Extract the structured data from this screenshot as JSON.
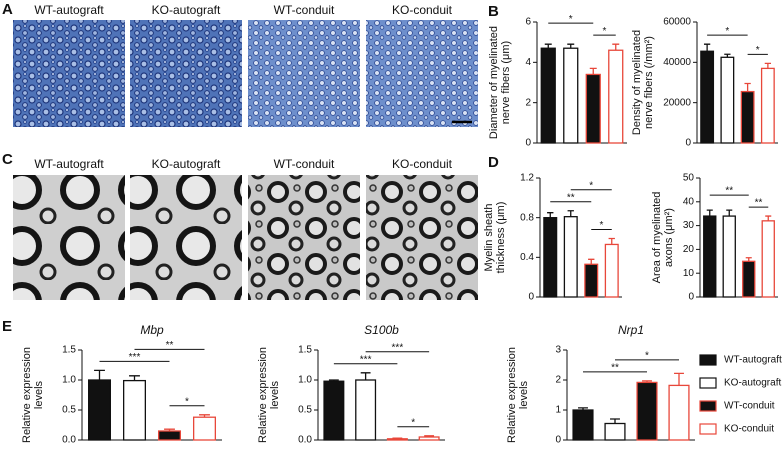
{
  "panels": [
    "A",
    "B",
    "C",
    "D",
    "E"
  ],
  "images_a": [
    "WT-autograft",
    "KO-autograft",
    "WT-conduit",
    "KO-conduit"
  ],
  "images_c": [
    "WT-autograft",
    "KO-autograft",
    "WT-conduit",
    "KO-conduit"
  ],
  "groups": [
    {
      "name": "WT-autograft",
      "fill": "#111111",
      "stroke": "#111111"
    },
    {
      "name": "KO-autograft",
      "fill": "#ffffff",
      "stroke": "#111111"
    },
    {
      "name": "WT-conduit",
      "fill": "#111111",
      "stroke": "#e8473a"
    },
    {
      "name": "KO-conduit",
      "fill": "#ffffff",
      "stroke": "#e8473a"
    }
  ],
  "chart_data": [
    {
      "type": "bar",
      "ylabel": [
        "Diameter of myelinated",
        "nerve fibers (μm)"
      ],
      "values": [
        4.7,
        4.7,
        3.4,
        4.6
      ],
      "errors": [
        0.2,
        0.2,
        0.3,
        0.3
      ],
      "ylim": [
        0,
        6
      ],
      "yticks": [
        0,
        2,
        4,
        6
      ],
      "annotations": [
        {
          "text": "*",
          "from": 2,
          "to": 3
        },
        {
          "text": "*",
          "from": 0,
          "to": 2
        }
      ]
    },
    {
      "type": "bar",
      "ylabel": [
        "Density of myelinated",
        "nerve fibers (/mm²)"
      ],
      "values": [
        45500,
        42500,
        25500,
        37000
      ],
      "errors": [
        3500,
        1500,
        4000,
        2500
      ],
      "ylim": [
        0,
        60000
      ],
      "yticks": [
        0,
        20000,
        40000,
        60000
      ],
      "annotations": [
        {
          "text": "*",
          "from": 2,
          "to": 3
        },
        {
          "text": "*",
          "from": 0,
          "to": 2
        }
      ]
    },
    {
      "type": "bar",
      "ylabel": [
        "Myelin sheath",
        "thickness (μm)"
      ],
      "values": [
        0.8,
        0.81,
        0.33,
        0.53
      ],
      "errors": [
        0.05,
        0.06,
        0.05,
        0.06
      ],
      "ylim": [
        0,
        1.2
      ],
      "yticks": [
        0,
        0.4,
        0.8,
        1.2
      ],
      "annotations": [
        {
          "text": "*",
          "from": 2,
          "to": 3
        },
        {
          "text": "**",
          "from": 0,
          "to": 2
        },
        {
          "text": "*",
          "from": 1,
          "to": 3
        }
      ]
    },
    {
      "type": "bar",
      "ylabel": [
        "Area of myelinated",
        "axons (μm²)"
      ],
      "values": [
        34,
        34,
        15,
        32
      ],
      "errors": [
        2.5,
        2.5,
        1.5,
        2
      ],
      "ylim": [
        0,
        50
      ],
      "yticks": [
        0,
        10,
        20,
        30,
        40,
        50
      ],
      "annotations": [
        {
          "text": "**",
          "from": 2,
          "to": 3
        },
        {
          "text": "**",
          "from": 0,
          "to": 2
        }
      ]
    },
    {
      "type": "bar",
      "title": "Mbp",
      "ylabel": [
        "Relative expression",
        "levels"
      ],
      "values": [
        1.0,
        0.99,
        0.15,
        0.38
      ],
      "errors": [
        0.16,
        0.08,
        0.03,
        0.04
      ],
      "ylim": [
        0,
        1.5
      ],
      "yticks": [
        {
          "value": 0,
          "label": "0.0"
        },
        0.5,
        {
          "value": 1,
          "label": "1.0"
        },
        1.5
      ],
      "annotations": [
        {
          "text": "*",
          "from": 2,
          "to": 3
        },
        {
          "text": "***",
          "from": 0,
          "to": 2
        },
        {
          "text": "**",
          "from": 1,
          "to": 3
        }
      ]
    },
    {
      "type": "bar",
      "title": "S100b",
      "ylabel": [
        "Relative expression",
        "levels"
      ],
      "values": [
        0.98,
        1.0,
        0.02,
        0.05
      ],
      "errors": [
        0.02,
        0.12,
        0.01,
        0.02
      ],
      "ylim": [
        0,
        1.5
      ],
      "yticks": [
        {
          "value": 0,
          "label": "0.0"
        },
        0.5,
        {
          "value": 1,
          "label": "1.0"
        },
        1.5
      ],
      "annotations": [
        {
          "text": "*",
          "from": 2,
          "to": 3
        },
        {
          "text": "***",
          "from": 0,
          "to": 2
        },
        {
          "text": "***",
          "from": 1,
          "to": 3
        }
      ]
    },
    {
      "type": "bar",
      "title": "Nrp1",
      "ylabel": [
        "Relative expression",
        "levels"
      ],
      "values": [
        1.0,
        0.55,
        1.92,
        1.82
      ],
      "errors": [
        0.07,
        0.15,
        0.05,
        0.4
      ],
      "ylim": [
        0,
        3
      ],
      "yticks": [
        0,
        1,
        2,
        3
      ],
      "annotations": [
        {
          "text": "**",
          "from": 0,
          "to": 2
        },
        {
          "text": "*",
          "from": 1,
          "to": 3
        }
      ]
    }
  ]
}
